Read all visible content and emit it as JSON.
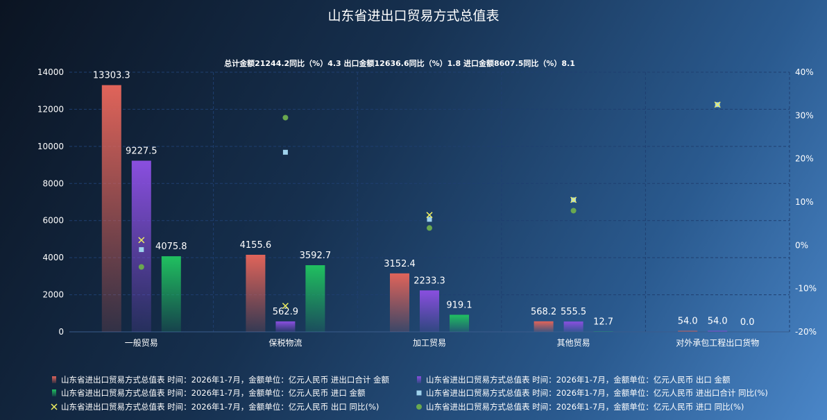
{
  "title": "山东省进出口贸易方式总值表",
  "subtitle": "总计金额21244.2同比（%）4.3 出口金额12636.6同比（%）1.8 进口金额8607.5同比（%）8.1",
  "colors": {
    "total": "#e0645a",
    "export": "#8a4fe0",
    "import": "#20c060",
    "total_yoy": "#9fd2ec",
    "export_yoy": "#f0f060",
    "import_yoy": "#6aa84f",
    "grid": "#1f3f70"
  },
  "chart_data": {
    "type": "bar",
    "categories": [
      "一般贸易",
      "保税物流",
      "加工贸易",
      "其他贸易",
      "对外承包工程出口货物"
    ],
    "ylim": [
      0,
      14000
    ],
    "y_ticks": [
      0,
      2000,
      4000,
      6000,
      8000,
      10000,
      12000,
      14000
    ],
    "y2lim": [
      -20,
      40
    ],
    "y2_ticks": [
      "-20%",
      "-10%",
      "0%",
      "10%",
      "20%",
      "30%",
      "40%"
    ],
    "grid": true,
    "legend_position": "bottom",
    "series": [
      {
        "name": "山东省进出口贸易方式总值表 时间：2026年1-7月，金额单位：亿元人民币 进出口合计 金额",
        "kind": "bar",
        "axis": "left",
        "color_key": "total",
        "values": [
          13303.3,
          4155.6,
          3152.4,
          568.2,
          54.0
        ]
      },
      {
        "name": "山东省进出口贸易方式总值表 时间：2026年1-7月，金额单位：亿元人民币 出口 金额",
        "kind": "bar",
        "axis": "left",
        "color_key": "export",
        "values": [
          9227.5,
          562.9,
          2233.3,
          555.5,
          54.0
        ]
      },
      {
        "name": "山东省进出口贸易方式总值表 时间：2026年1-7月，金额单位：亿元人民币 进口 金额",
        "kind": "bar",
        "axis": "left",
        "color_key": "import",
        "values": [
          4075.8,
          3592.7,
          919.1,
          12.7,
          0.0
        ]
      },
      {
        "name": "山东省进出口贸易方式总值表 时间：2026年1-7月，金额单位：亿元人民币 进出口合计 同比(%)",
        "kind": "square",
        "axis": "right",
        "color_key": "total_yoy",
        "values": [
          -1.0,
          21.5,
          6.0,
          10.5,
          32.5
        ]
      },
      {
        "name": "山东省进出口贸易方式总值表 时间：2026年1-7月，金额单位：亿元人民币 出口 同比(%)",
        "kind": "cross",
        "axis": "right",
        "color_key": "export_yoy",
        "values": [
          1.2,
          -14.0,
          7.0,
          10.5,
          32.5
        ]
      },
      {
        "name": "山东省进出口贸易方式总值表 时间：2026年1-7月，金额单位：亿元人民币 进口 同比(%)",
        "kind": "dot",
        "axis": "right",
        "color_key": "import_yoy",
        "values": [
          -5.0,
          29.5,
          4.0,
          8.0,
          null
        ]
      }
    ]
  }
}
